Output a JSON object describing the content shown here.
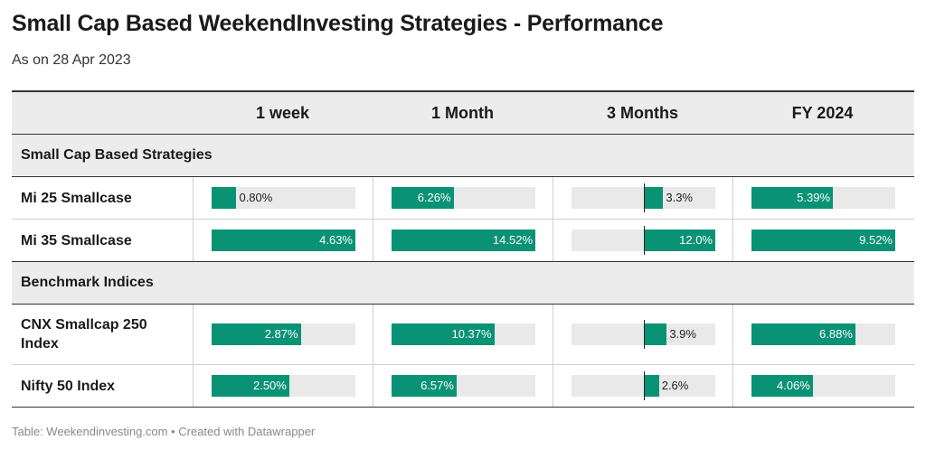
{
  "title": "Small Cap Based WeekendInvesting Strategies - Performance",
  "subtitle": "As on 28 Apr 2023",
  "footer": "Table: Weekendinvesting.com • Created with Datawrapper",
  "columns": [
    "1 week",
    "1 Month",
    "3 Months",
    "FY 2024"
  ],
  "colors": {
    "bar": "#0a9275",
    "track": "#e9e9e9",
    "header_bg": "#ececec"
  },
  "chart_data": {
    "type": "table",
    "columns": [
      "1 week",
      "1 Month",
      "3 Months",
      "FY 2024"
    ],
    "groups": [
      {
        "name": "Small Cap Based Strategies",
        "rows": [
          {
            "name": "Mi 25 Smallcase",
            "values": [
              0.8,
              6.26,
              3.3,
              5.39
            ],
            "labels": [
              "0.80%",
              "6.26%",
              "3.3%",
              "5.39%"
            ]
          },
          {
            "name": "Mi 35 Smallcase",
            "values": [
              4.63,
              14.52,
              12.0,
              9.52
            ],
            "labels": [
              "4.63%",
              "14.52%",
              "12.0%",
              "9.52%"
            ]
          }
        ]
      },
      {
        "name": "Benchmark Indices",
        "rows": [
          {
            "name": "CNX Smallcap 250 Index",
            "values": [
              2.87,
              10.37,
              3.9,
              6.88
            ],
            "labels": [
              "2.87%",
              "10.37%",
              "3.9%",
              "6.88%"
            ]
          },
          {
            "name": "Nifty 50 Index",
            "values": [
              2.5,
              6.57,
              2.6,
              4.06
            ],
            "labels": [
              "2.50%",
              "6.57%",
              "2.6%",
              "4.06%"
            ]
          }
        ]
      }
    ],
    "column_ranges": [
      [
        0,
        4.63
      ],
      [
        0,
        14.52
      ],
      [
        -12.0,
        12.0
      ],
      [
        0,
        9.52
      ]
    ]
  }
}
